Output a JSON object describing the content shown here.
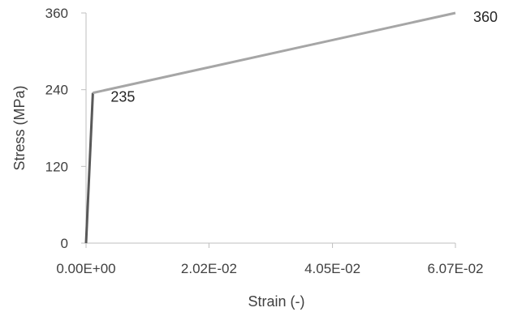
{
  "chart_data": {
    "type": "line",
    "title": "",
    "xlabel": "Strain (-)",
    "ylabel": "Stress (MPa)",
    "xlim": [
      0,
      0.0607
    ],
    "ylim": [
      0,
      360
    ],
    "x_ticks": [
      0,
      0.0202,
      0.0405,
      0.0607
    ],
    "x_tick_labels": [
      "0.00E+00",
      "2.02E-02",
      "4.05E-02",
      "6.07E-02"
    ],
    "y_ticks": [
      0,
      120,
      240,
      360
    ],
    "y_tick_labels": [
      "0",
      "120",
      "240",
      "360"
    ],
    "grid": false,
    "legend": "none",
    "series": [
      {
        "color": "#595959",
        "points": [
          [
            0,
            0
          ],
          [
            0.00112,
            235
          ]
        ]
      },
      {
        "color": "#a6a6a6",
        "points": [
          [
            0.00112,
            235
          ],
          [
            0.0607,
            360
          ]
        ]
      }
    ],
    "data_labels": [
      {
        "x": 0.00112,
        "y": 235,
        "text": "235"
      },
      {
        "x": 0.0607,
        "y": 360,
        "text": "360"
      }
    ],
    "axis_color": "#bfbfbf"
  }
}
